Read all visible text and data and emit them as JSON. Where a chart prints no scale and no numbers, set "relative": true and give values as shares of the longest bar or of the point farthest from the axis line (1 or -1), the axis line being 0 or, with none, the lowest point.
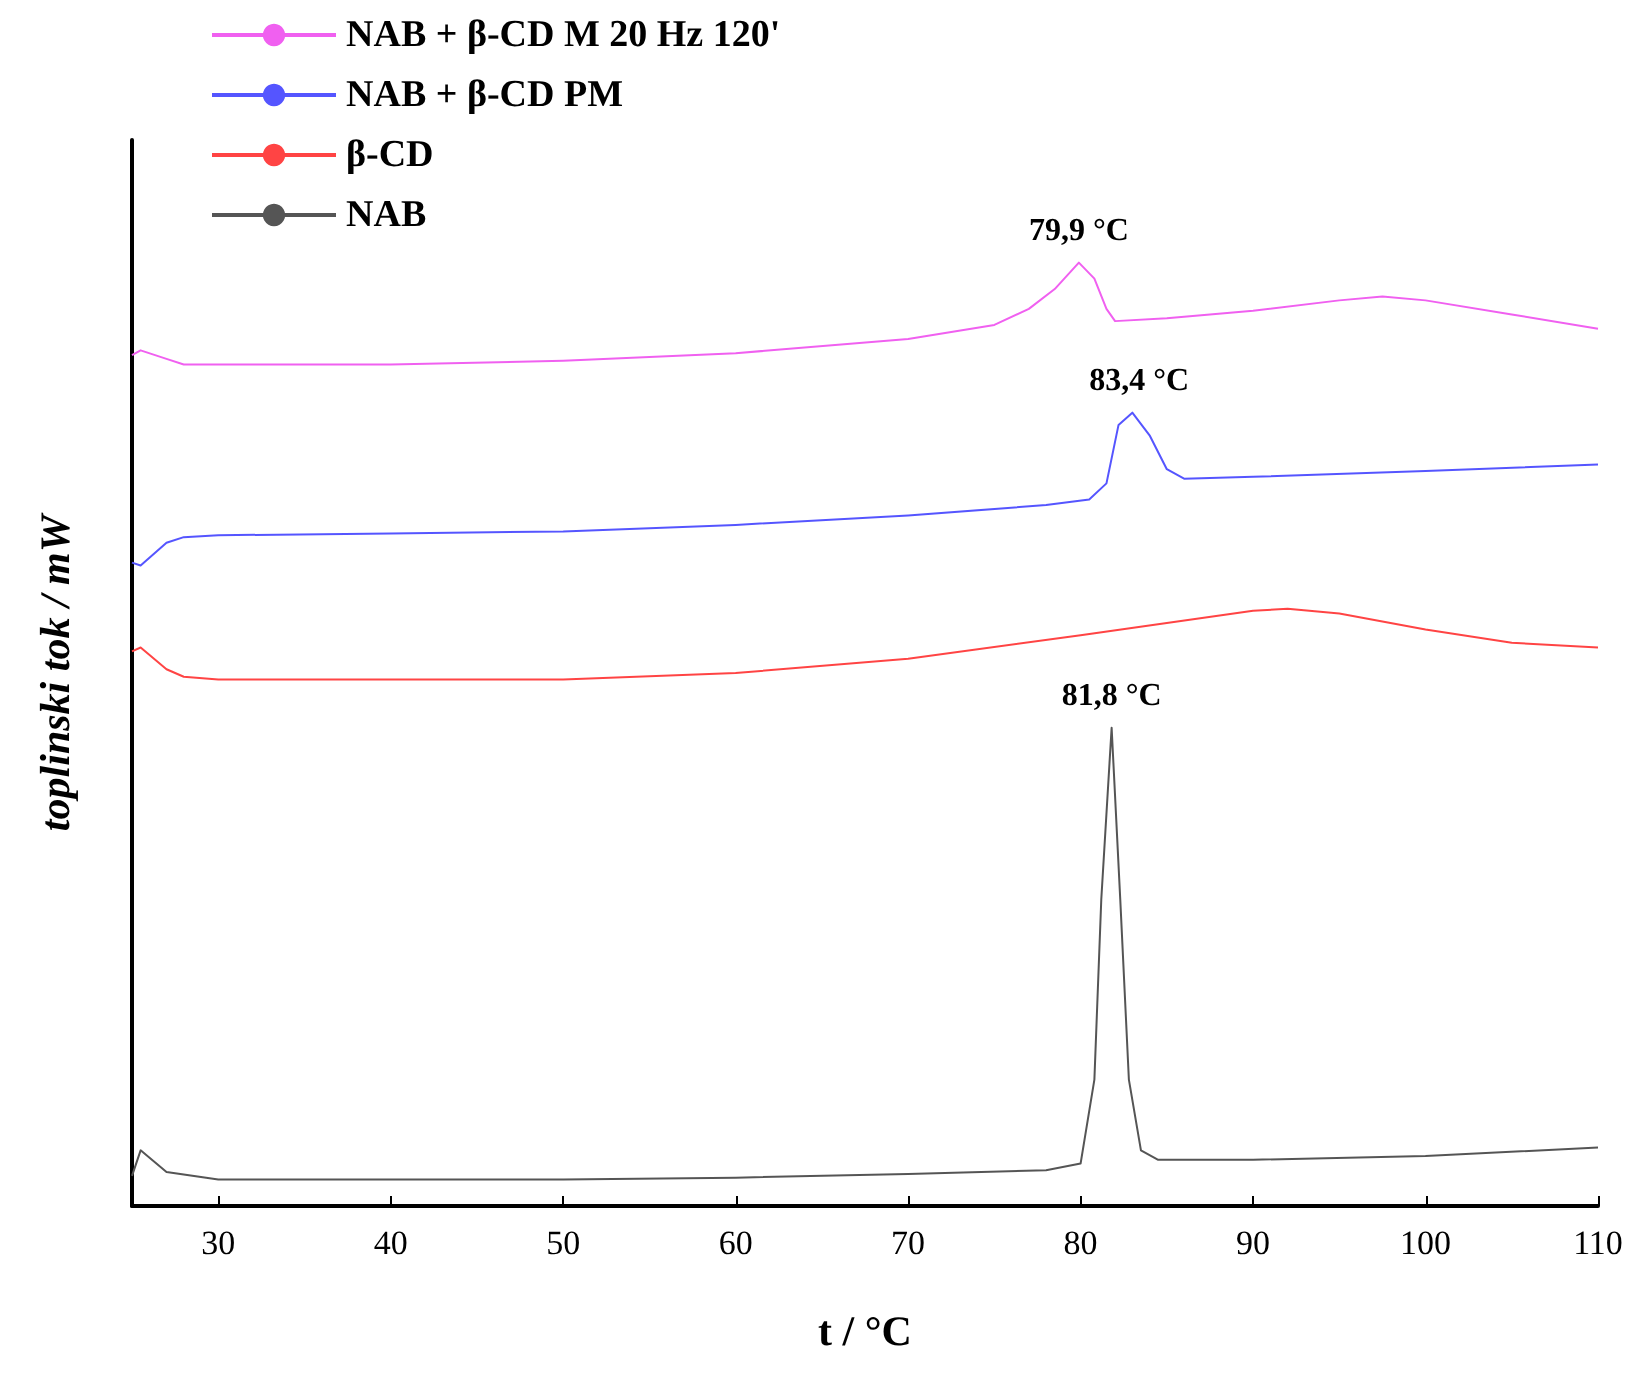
{
  "chart_data": {
    "type": "line",
    "relative": true,
    "xlabel": "t / °C",
    "ylabel": "toplinski tok / mW",
    "xlim": [
      25,
      110
    ],
    "xticks": [
      30,
      40,
      50,
      60,
      70,
      80,
      90,
      100,
      110
    ],
    "legend": "top",
    "grid": false,
    "marker": "none",
    "line_style": "solid",
    "series": [
      {
        "name": "NAB + β-CD M 20 Hz 120'",
        "color": "#f060f0",
        "x": [
          25,
          25.5,
          27,
          28,
          30,
          40,
          50,
          60,
          70,
          75,
          77,
          78.5,
          79.9,
          80.8,
          81.5,
          82,
          85,
          90,
          95,
          97.5,
          100,
          105,
          110
        ],
        "values": [
          0.902,
          0.907,
          0.898,
          0.892,
          0.892,
          0.892,
          0.896,
          0.904,
          0.919,
          0.934,
          0.951,
          0.972,
          1,
          0.983,
          0.951,
          0.938,
          0.941,
          0.949,
          0.96,
          0.964,
          0.96,
          0.945,
          0.93
        ]
      },
      {
        "name": "NAB + β-CD PM",
        "color": "#5555ff",
        "x": [
          25,
          25.5,
          27,
          28,
          30,
          40,
          50,
          60,
          70,
          78,
          80.5,
          81.5,
          82.2,
          83,
          84,
          85,
          86,
          90,
          100,
          110
        ],
        "values": [
          0.682,
          0.679,
          0.703,
          0.709,
          0.711,
          0.713,
          0.715,
          0.722,
          0.732,
          0.743,
          0.749,
          0.766,
          0.828,
          0.841,
          0.817,
          0.781,
          0.771,
          0.773,
          0.779,
          0.786
        ]
      },
      {
        "name": "β-CD",
        "color": "#ff4444",
        "x": [
          25,
          25.5,
          27,
          28,
          30,
          40,
          50,
          60,
          70,
          80,
          85,
          90,
          92,
          95,
          100,
          105,
          110
        ],
        "values": [
          0.588,
          0.592,
          0.569,
          0.561,
          0.558,
          0.558,
          0.558,
          0.565,
          0.58,
          0.605,
          0.618,
          0.631,
          0.633,
          0.628,
          0.611,
          0.597,
          0.592
        ]
      },
      {
        "name": "NAB",
        "color": "#555555",
        "x": [
          25,
          25.5,
          27,
          30,
          40,
          50,
          60,
          70,
          78,
          80,
          80.8,
          81.2,
          81.8,
          82.3,
          82.8,
          83.5,
          84.5,
          90,
          100,
          110
        ],
        "values": [
          0.032,
          0.059,
          0.036,
          0.028,
          0.028,
          0.028,
          0.03,
          0.034,
          0.038,
          0.045,
          0.134,
          0.325,
          0.507,
          0.325,
          0.134,
          0.059,
          0.049,
          0.049,
          0.053,
          0.062
        ]
      }
    ],
    "annotations": [
      {
        "text": "79,9 °C",
        "x": 79.9,
        "y": 1
      },
      {
        "text": "83,4 °C",
        "x": 83.4,
        "y": 0.841
      },
      {
        "text": "81,8 °C",
        "x": 81.8,
        "y": 0.507
      }
    ]
  }
}
